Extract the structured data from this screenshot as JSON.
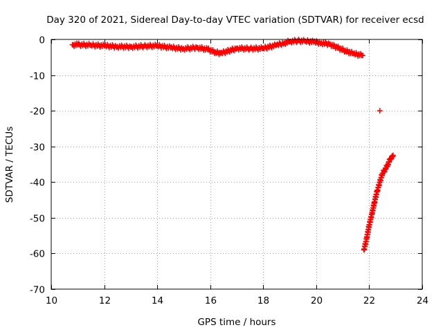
{
  "chart_data": {
    "type": "scatter",
    "title": "Day 320 of 2021, Sidereal Day-to-day VTEC variation (SDTVAR) for receiver ecsd",
    "xlabel": "GPS time / hours",
    "ylabel": "SDTVAR / TECUs",
    "xlim": [
      10,
      24
    ],
    "ylim": [
      -70,
      0
    ],
    "xticks": [
      10,
      12,
      14,
      16,
      18,
      20,
      22,
      24
    ],
    "yticks": [
      0,
      -10,
      -20,
      -30,
      -40,
      -50,
      -60,
      -70
    ],
    "grid": true,
    "marker_color": "#ff0000",
    "series": [
      {
        "x": [
          10.8,
          11.0,
          11.5,
          12.0,
          12.5,
          13.0,
          13.5,
          14.0,
          14.5,
          15.0,
          15.5,
          15.9,
          16.2,
          16.4,
          16.7,
          17.0,
          17.5,
          18.0,
          18.5,
          18.8,
          19.0,
          19.3,
          19.6,
          19.9,
          20.2,
          20.5,
          20.8,
          21.1,
          21.4,
          21.75
        ],
        "y": [
          -1.5,
          -1.5,
          -1.6,
          -1.8,
          -2.0,
          -2.1,
          -1.9,
          -1.8,
          -2.3,
          -2.6,
          -2.3,
          -2.8,
          -3.6,
          -3.9,
          -3.2,
          -2.5,
          -2.6,
          -2.5,
          -1.6,
          -1.0,
          -0.6,
          -0.4,
          -0.5,
          -0.7,
          -1.0,
          -1.3,
          -2.3,
          -3.2,
          -4.0,
          -4.5
        ]
      },
      {
        "x": [
          21.8,
          21.9,
          22.0,
          22.1,
          22.2,
          22.3,
          22.4,
          22.5,
          22.6,
          22.7,
          22.8,
          22.9
        ],
        "y": [
          -59.0,
          -56.0,
          -52.0,
          -49.0,
          -45.5,
          -42.5,
          -40.0,
          -37.5,
          -36.5,
          -35.0,
          -33.5,
          -32.5
        ]
      },
      {
        "x": [
          22.4
        ],
        "y": [
          -20.0
        ]
      }
    ]
  }
}
